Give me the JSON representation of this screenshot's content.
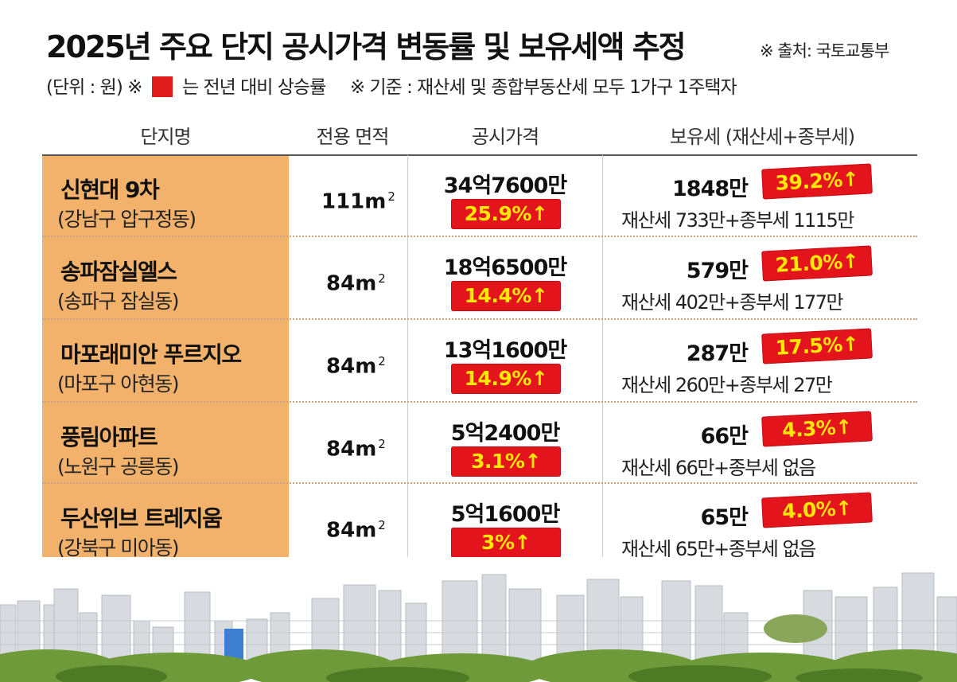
{
  "title": "2025년 주요 단지 공시가격 변동률 및 보유세액 추정",
  "source": "※ 출처: 국토교통부",
  "subtitle": {
    "unit": "(단위 : 원) ※",
    "legend_text": "는 전년 대비 상승률",
    "basis": "※ 기준 :  재산세 및 종합부동산세 모두  1가구 1주택자"
  },
  "colors": {
    "accent_red": "#e3141c",
    "badge_text": "#ffe800",
    "name_column": "#f3b26c"
  },
  "headers": {
    "name": "단지명",
    "area": "전용 면적",
    "price": "공시가격",
    "tax": "보유세 (재산세+종부세)"
  },
  "area_unit": "m",
  "area_sup": "2",
  "rows": [
    {
      "name": "신현대 9차",
      "location": "(강남구 압구정동)",
      "area": "111",
      "price": "34억7600만",
      "price_change": "25.9%",
      "tax": "1848만",
      "tax_change": "39.2%",
      "tax_detail": "재산세 733만+종부세 1115만"
    },
    {
      "name": "송파잠실엘스",
      "location": "(송파구 잠실동)",
      "area": "84",
      "price": "18억6500만",
      "price_change": "14.4%",
      "tax": "579만",
      "tax_change": "21.0%",
      "tax_detail": "재산세 402만+종부세 177만"
    },
    {
      "name": "마포래미안 푸르지오",
      "location": "(마포구 아현동)",
      "area": "84",
      "price": "13억1600만",
      "price_change": "14.9%",
      "tax": "287만",
      "tax_change": "17.5%",
      "tax_detail": "재산세 260만+종부세 27만"
    },
    {
      "name": "풍림아파트",
      "location": "(노원구 공릉동)",
      "area": "84",
      "price": "5억2400만",
      "price_change": "3.1%",
      "tax": "66만",
      "tax_change": "4.3%",
      "tax_detail": "재산세 66만+종부세 없음"
    },
    {
      "name": "두산위브 트레지움",
      "location": "(강북구 미아동)",
      "area": "84",
      "price": "5억1600만",
      "price_change": "3%",
      "tax": "65만",
      "tax_change": "4.0%",
      "tax_detail": "재산세 65만+종부세 없음"
    }
  ],
  "arrow_glyph": "↑"
}
